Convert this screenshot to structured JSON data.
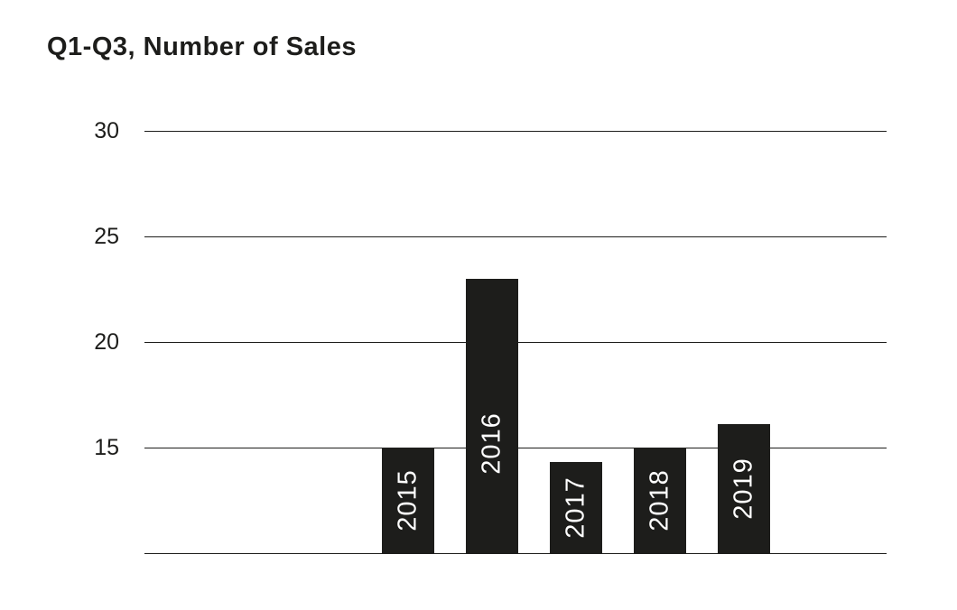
{
  "title": "Q1-Q3, Number of Sales",
  "chart_data": {
    "type": "bar",
    "title": "Q1-Q3, Number of Sales",
    "categories": [
      "2015",
      "2016",
      "2017",
      "2018",
      "2019"
    ],
    "values": [
      15,
      23,
      14.3,
      15,
      16.1
    ],
    "xlabel": "",
    "ylabel": "",
    "ylim": [
      10,
      31
    ],
    "yticks": [
      15,
      20,
      25,
      30
    ],
    "grid": true,
    "legend": "none",
    "bar_color": "#1d1d1b",
    "bar_label_color": "#ffffff",
    "axis_text_color": "#1d1d1b",
    "background_color": "#ffffff",
    "value_labels": "year names inside bars, rotated vertical"
  }
}
